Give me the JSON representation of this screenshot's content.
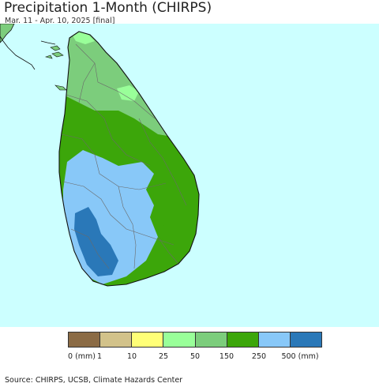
{
  "title": "Precipitation 1-Month (CHIRPS)",
  "subtitle": "Mar. 11 - Apr. 10, 2025 [final]",
  "map": {
    "ocean_color": "#ccffff",
    "land_outline_color": "#111111",
    "district_border_color": "#6a6a6a"
  },
  "legend": {
    "classes": [
      {
        "color": "#8b6b45",
        "range": "0-1 mm"
      },
      {
        "color": "#d2c28a",
        "range": "1-10 mm"
      },
      {
        "color": "#ffff77",
        "range": "10-25 mm"
      },
      {
        "color": "#99ff99",
        "range": "25-50 mm"
      },
      {
        "color": "#7ccd7c",
        "range": "50-150 mm"
      },
      {
        "color": "#3ca60a",
        "range": "150-250 mm"
      },
      {
        "color": "#88c8f8",
        "range": "250-500 mm"
      },
      {
        "color": "#2a78b8",
        "range": ">500 mm"
      }
    ],
    "labels": [
      "0 (mm)",
      "1",
      "10",
      "25",
      "50",
      "150",
      "250",
      "500 (mm)"
    ]
  },
  "source": "Source: CHIRPS, UCSB, Climate Hazards Center"
}
